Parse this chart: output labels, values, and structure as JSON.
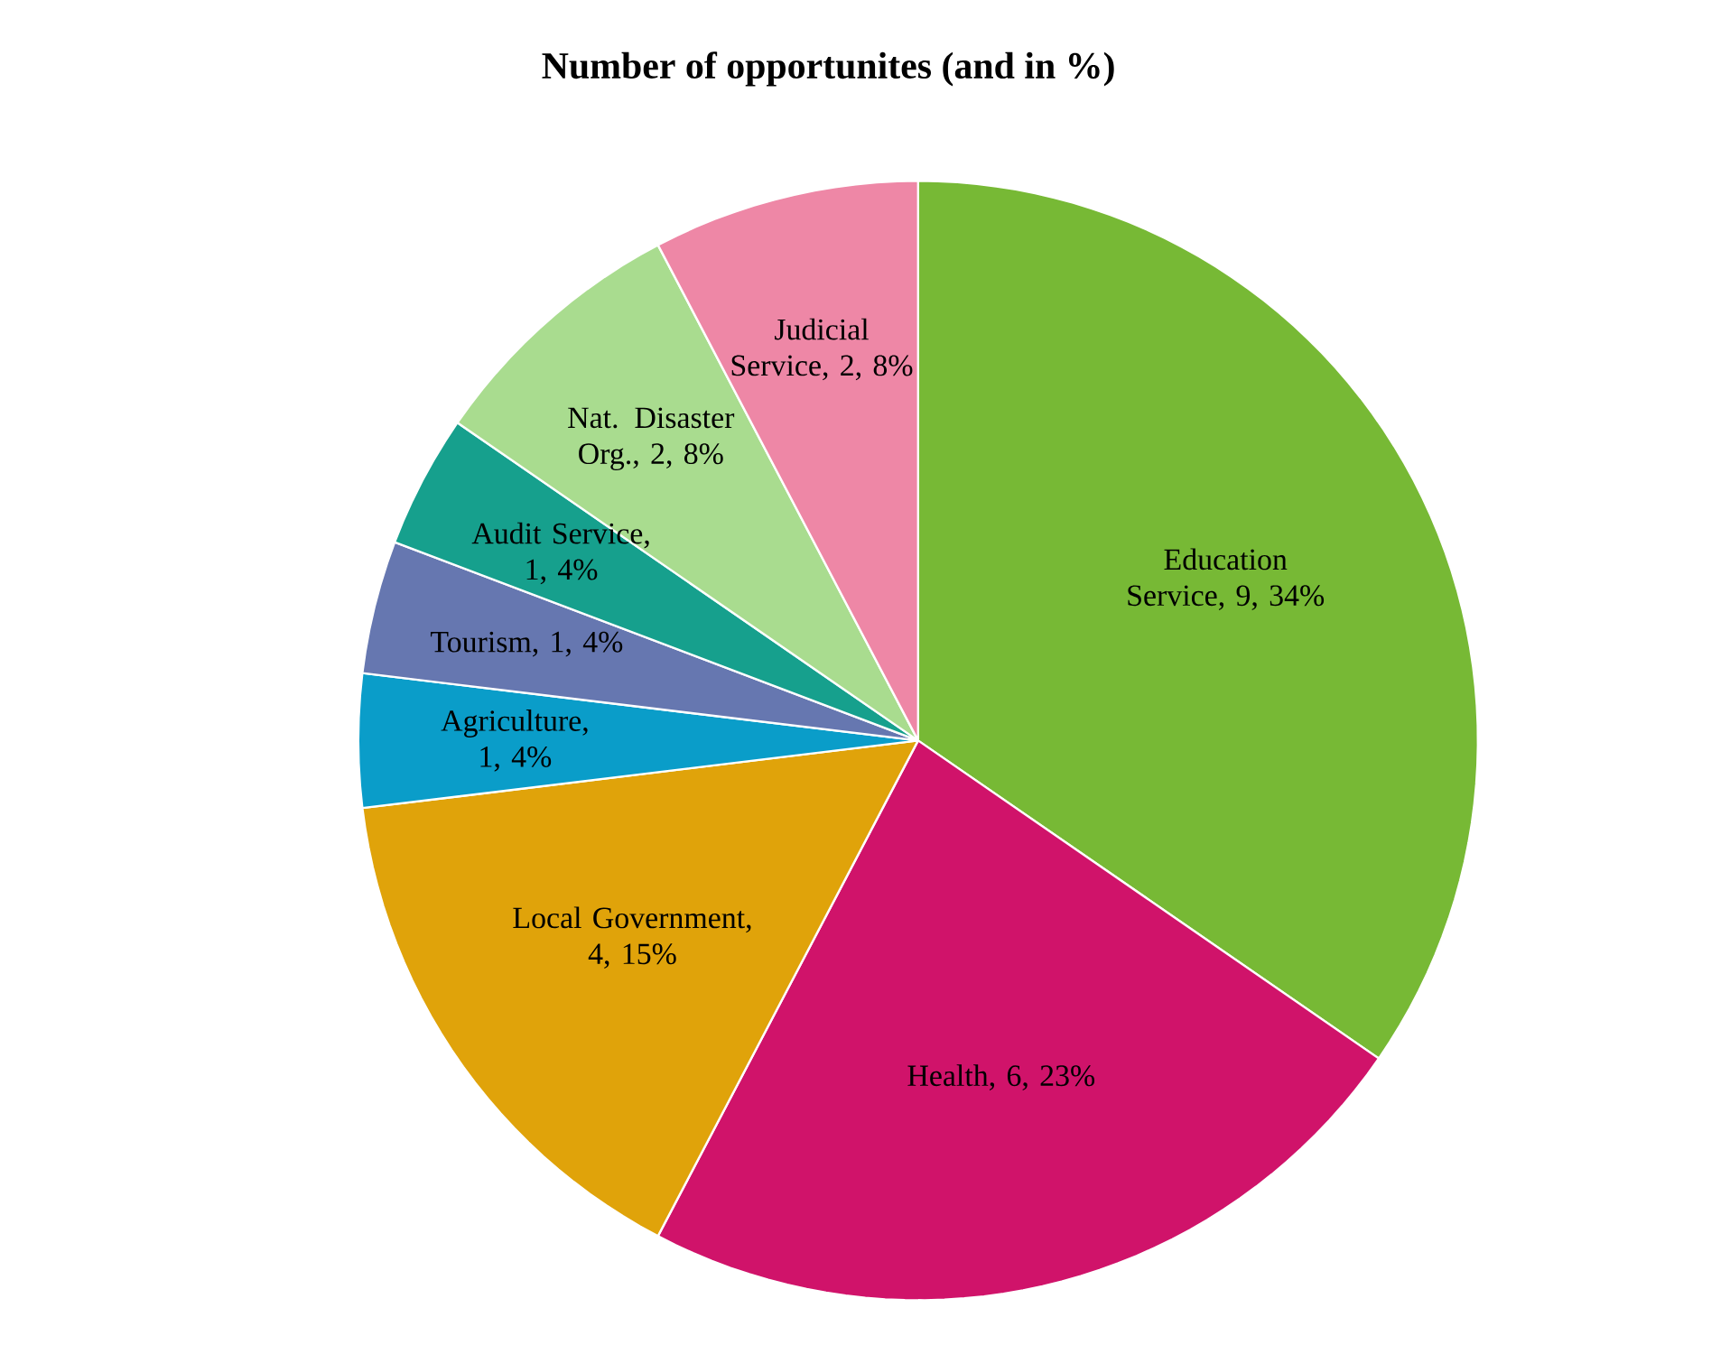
{
  "chart_data": {
    "type": "pie",
    "title": "Number of opportunites (and in %)",
    "categories": [
      "Education Service",
      "Health",
      "Local Government",
      "Agriculture",
      "Tourism",
      "Audit Service",
      "Nat. Disaster Org.",
      "Judicial Service"
    ],
    "values": [
      9,
      6,
      4,
      1,
      1,
      1,
      2,
      2
    ],
    "value_labels": [
      ", 9, 34%",
      ", 6, 23%",
      ", 4, 15%",
      ", 1, 4%",
      ", 1, 4%",
      ", 1, 4%",
      ", 2, 8%",
      ", 2, 8%"
    ],
    "colors": [
      "#77b935",
      "#d0136a",
      "#e0a30a",
      "#0a9dc9",
      "#6677b0",
      "#16a08d",
      "#a9dc8f",
      "#ee87a6"
    ],
    "legend": false
  }
}
